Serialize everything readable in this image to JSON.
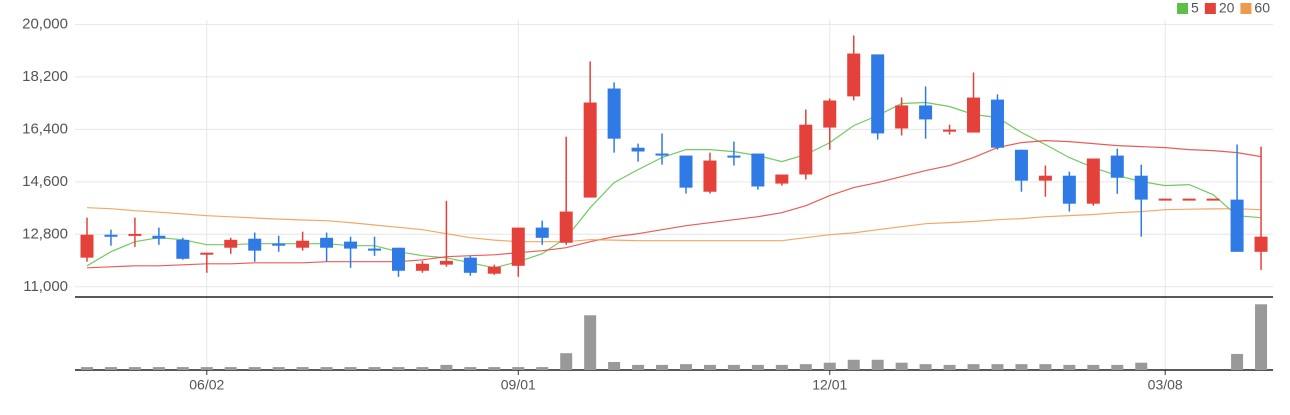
{
  "chart_data": {
    "type": "candlestick",
    "categories": [
      null,
      null,
      null,
      null,
      null,
      "06/02",
      null,
      null,
      null,
      null,
      null,
      null,
      null,
      null,
      null,
      null,
      null,
      null,
      "09/01",
      null,
      null,
      null,
      null,
      null,
      null,
      null,
      null,
      null,
      null,
      null,
      null,
      "12/01",
      null,
      null,
      null,
      null,
      null,
      null,
      null,
      null,
      null,
      null,
      null,
      null,
      null,
      "03/08",
      null,
      null,
      null,
      null
    ],
    "open": [
      12000,
      12750,
      12720,
      12750,
      12610,
      12100,
      12340,
      12650,
      12480,
      12340,
      12680,
      12550,
      12310,
      12340,
      11550,
      11760,
      12000,
      11450,
      11720,
      13030,
      12510,
      14060,
      17800,
      15770,
      15570,
      15500,
      14260,
      15500,
      15570,
      14540,
      14850,
      16460,
      17530,
      18970,
      16430,
      17220,
      16320,
      16290,
      17420,
      15700,
      14640,
      14810,
      13850,
      15500,
      14810,
      13990,
      13990,
      13990,
      13990,
      12200
    ],
    "high": [
      13370,
      12960,
      13370,
      13030,
      12680,
      12170,
      12680,
      12860,
      12750,
      12890,
      12860,
      12720,
      12720,
      12340,
      11890,
      13950,
      12060,
      11760,
      13030,
      13270,
      16150,
      18730,
      18010,
      15910,
      16260,
      15500,
      15600,
      15980,
      15570,
      14850,
      17080,
      17460,
      19620,
      18970,
      17490,
      17870,
      16560,
      18350,
      17600,
      15700,
      15160,
      14950,
      15400,
      15740,
      15190,
      13990,
      13990,
      13990,
      15880,
      15810
    ],
    "low": [
      11860,
      12410,
      12370,
      12440,
      11930,
      11480,
      12130,
      11860,
      12200,
      12240,
      11860,
      11650,
      12060,
      11340,
      11480,
      11690,
      11380,
      11410,
      11340,
      12440,
      12440,
      14060,
      15600,
      15290,
      15190,
      14200,
      14200,
      15160,
      14330,
      14470,
      14680,
      15700,
      17390,
      16050,
      16190,
      16080,
      16220,
      16290,
      15700,
      14260,
      14090,
      13580,
      13780,
      14190,
      12720,
      13990,
      13990,
      13990,
      12200,
      11580
    ],
    "close": [
      12786,
      12720,
      12780,
      12650,
      11960,
      12170,
      12610,
      12240,
      12410,
      12580,
      12340,
      12310,
      12240,
      11550,
      11790,
      11890,
      11480,
      11690,
      13030,
      12680,
      13580,
      17320,
      16080,
      15640,
      15500,
      14400,
      15330,
      15430,
      14440,
      14850,
      16560,
      17390,
      19000,
      16260,
      17220,
      16740,
      16390,
      17490,
      15770,
      14640,
      14810,
      13850,
      15400,
      14740,
      13990,
      13990,
      13990,
      13990,
      12200,
      12720
    ],
    "up_color": "#e5413b",
    "down_color": "#2f7ae5",
    "moving_averages": [
      {
        "name": "5",
        "color": "#5cc046",
        "values": [
          11721,
          12202,
          12546,
          12683,
          12614,
          12443,
          12443,
          12477,
          12477,
          12477,
          12477,
          12408,
          12408,
          12202,
          12065,
          11996,
          11824,
          11653,
          11859,
          12134,
          12683,
          13714,
          14572,
          15019,
          15431,
          15706,
          15706,
          15637,
          15500,
          15294,
          15534,
          15946,
          16530,
          16874,
          17286,
          17320,
          17183,
          16908,
          16805,
          16290,
          15878,
          15431,
          15088,
          14813,
          14607,
          14469,
          14504,
          14160,
          13439,
          13370
        ]
      },
      {
        "name": "20",
        "color": "#e5413b",
        "values": [
          11653,
          11687,
          11721,
          11721,
          11756,
          11790,
          11790,
          11824,
          11824,
          11824,
          11859,
          11859,
          11859,
          11859,
          11927,
          12031,
          12065,
          12099,
          12168,
          12237,
          12340,
          12546,
          12718,
          12821,
          12958,
          13095,
          13198,
          13302,
          13405,
          13542,
          13782,
          14126,
          14401,
          14572,
          14779,
          14985,
          15156,
          15431,
          15775,
          15946,
          16015,
          15981,
          15912,
          15843,
          15809,
          15775,
          15706,
          15672,
          15603,
          15466
        ]
      },
      {
        "name": "60",
        "color": "#ee9a4d",
        "values": [
          13714,
          13680,
          13611,
          13560,
          13500,
          13439,
          13400,
          13360,
          13320,
          13290,
          13267,
          13200,
          13120,
          13040,
          12958,
          12820,
          12683,
          12600,
          12546,
          12546,
          12546,
          12614,
          12600,
          12580,
          12580,
          12580,
          12580,
          12580,
          12580,
          12580,
          12683,
          12786,
          12850,
          12958,
          13060,
          13164,
          13200,
          13240,
          13302,
          13340,
          13405,
          13440,
          13480,
          13542,
          13580,
          13645,
          13660,
          13670,
          13679,
          13645
        ]
      }
    ],
    "ylim": [
      10650,
      20150
    ],
    "yticks": [
      {
        "value": 11000,
        "label": "11,000"
      },
      {
        "value": 12800,
        "label": "12,800"
      },
      {
        "value": 14600,
        "label": "14,600"
      },
      {
        "value": 16400,
        "label": "16,400"
      },
      {
        "value": 18200,
        "label": "18,200"
      },
      {
        "value": 20000,
        "label": "20,000"
      }
    ],
    "grid": true,
    "legend": "top-right",
    "volume": {
      "color": "#999999",
      "ylim": [
        0,
        100
      ],
      "values": [
        4,
        4,
        4,
        4,
        4,
        4,
        4,
        4,
        4,
        4,
        4,
        4,
        4,
        4,
        4,
        7,
        4,
        4,
        4,
        4,
        23,
        75,
        11,
        7,
        7,
        8,
        7,
        7,
        7,
        7,
        8,
        10,
        14,
        14,
        10,
        8,
        7,
        8,
        8,
        8,
        8,
        7,
        7,
        7,
        10,
        0,
        0,
        0,
        22,
        90
      ]
    }
  }
}
